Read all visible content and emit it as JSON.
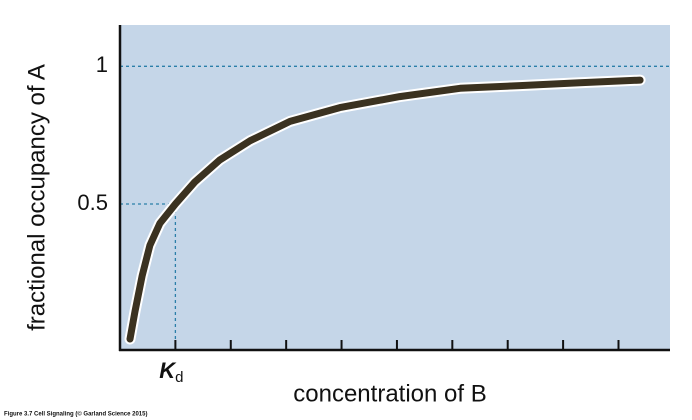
{
  "chart_data": {
    "type": "line",
    "xlabel": "concentration of B",
    "ylabel": "fractional occupancy of A",
    "source": "Figure 3.7 Cell Signaling (© Garland Science 2015)",
    "x": [
      0.18,
      0.27,
      0.4,
      0.54,
      0.72,
      1,
      1.35,
      1.8,
      2.35,
      3.07,
      3.97,
      5.05,
      6.14,
      7.22,
      8.3,
      9.39
    ],
    "series": [
      {
        "name": "occupancy",
        "color": "#3b3220",
        "values": [
          0.01,
          0.11,
          0.24,
          0.35,
          0.43,
          0.5,
          0.58,
          0.66,
          0.73,
          0.8,
          0.85,
          0.89,
          0.92,
          0.93,
          0.94,
          0.95
        ]
      }
    ],
    "xlim": [
      0,
      9.93
    ],
    "ylim": [
      -0.03,
      1.15
    ],
    "xticks": [
      2,
      3,
      4,
      5,
      6,
      7,
      8,
      9
    ],
    "xtick_labels": false,
    "yticks": [
      0.5,
      1
    ],
    "kd": {
      "x": 1,
      "y": 0.5,
      "label": "K",
      "subscript": "d"
    },
    "background": "#c5d6e8",
    "guide_color": "#2b7fa9"
  }
}
